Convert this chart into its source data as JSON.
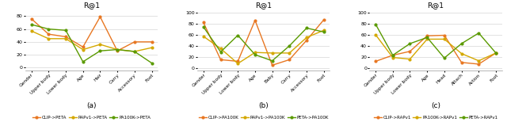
{
  "subplot_a": {
    "title": "R@1",
    "xlabel_label": "(a)",
    "categories": [
      "Gender",
      "Upper body",
      "Lower body",
      "Age",
      "Hair",
      "Carry",
      "Accessory",
      "Foot"
    ],
    "ylim": [
      -5,
      90
    ],
    "yticks": [
      0,
      20,
      40,
      60,
      80
    ],
    "series": [
      {
        "label": "CLIP->PETA",
        "color": "#E87722",
        "values": [
          76,
          52,
          48,
          32,
          79,
          26,
          40,
          40
        ]
      },
      {
        "label": "RAPv1->PETA",
        "color": "#D4A800",
        "values": [
          57,
          45,
          45,
          28,
          36,
          28,
          25,
          31
        ]
      },
      {
        "label": "PA100K->PETA",
        "color": "#5A9A00",
        "values": [
          67,
          60,
          58,
          9,
          26,
          28,
          25,
          7
        ]
      }
    ]
  },
  "subplot_b": {
    "title": "R@1",
    "xlabel_label": "(b)",
    "categories": [
      "Gender",
      "Upper body",
      "Lower body",
      "Age",
      "Baby",
      "Carry",
      "Accessory",
      "Foot"
    ],
    "ylim": [
      -5,
      105
    ],
    "yticks": [
      0,
      20,
      40,
      60,
      80,
      100
    ],
    "series": [
      {
        "label": "CLIP->PA100K",
        "color": "#E87722",
        "values": [
          82,
          15,
          12,
          86,
          5,
          15,
          50,
          87
        ]
      },
      {
        "label": "RAPv1->PA100K",
        "color": "#D4A800",
        "values": [
          57,
          35,
          8,
          28,
          27,
          27,
          55,
          68
        ]
      },
      {
        "label": "PETA->PA100K",
        "color": "#5A9A00",
        "values": [
          74,
          29,
          59,
          24,
          13,
          40,
          72,
          65
        ]
      }
    ]
  },
  "subplot_c": {
    "title": "R@1",
    "xlabel_label": "(c)",
    "categories": [
      "Gender",
      "Upper body",
      "Lower body",
      "Age",
      "Head",
      "Attach",
      "Action",
      "Foot"
    ],
    "ylim": [
      -5,
      105
    ],
    "yticks": [
      0,
      20,
      40,
      60,
      80,
      100
    ],
    "series": [
      {
        "label": "CLIP->RAPv1",
        "color": "#E87722",
        "values": [
          12,
          23,
          30,
          58,
          59,
          10,
          7,
          27
        ]
      },
      {
        "label": "PA100K->RAPv1",
        "color": "#D4A800",
        "values": [
          60,
          19,
          16,
          52,
          52,
          26,
          13,
          27
        ]
      },
      {
        "label": "PETA->RAPv1",
        "color": "#5A9A00",
        "values": [
          79,
          23,
          44,
          55,
          18,
          44,
          63,
          27
        ]
      }
    ]
  }
}
